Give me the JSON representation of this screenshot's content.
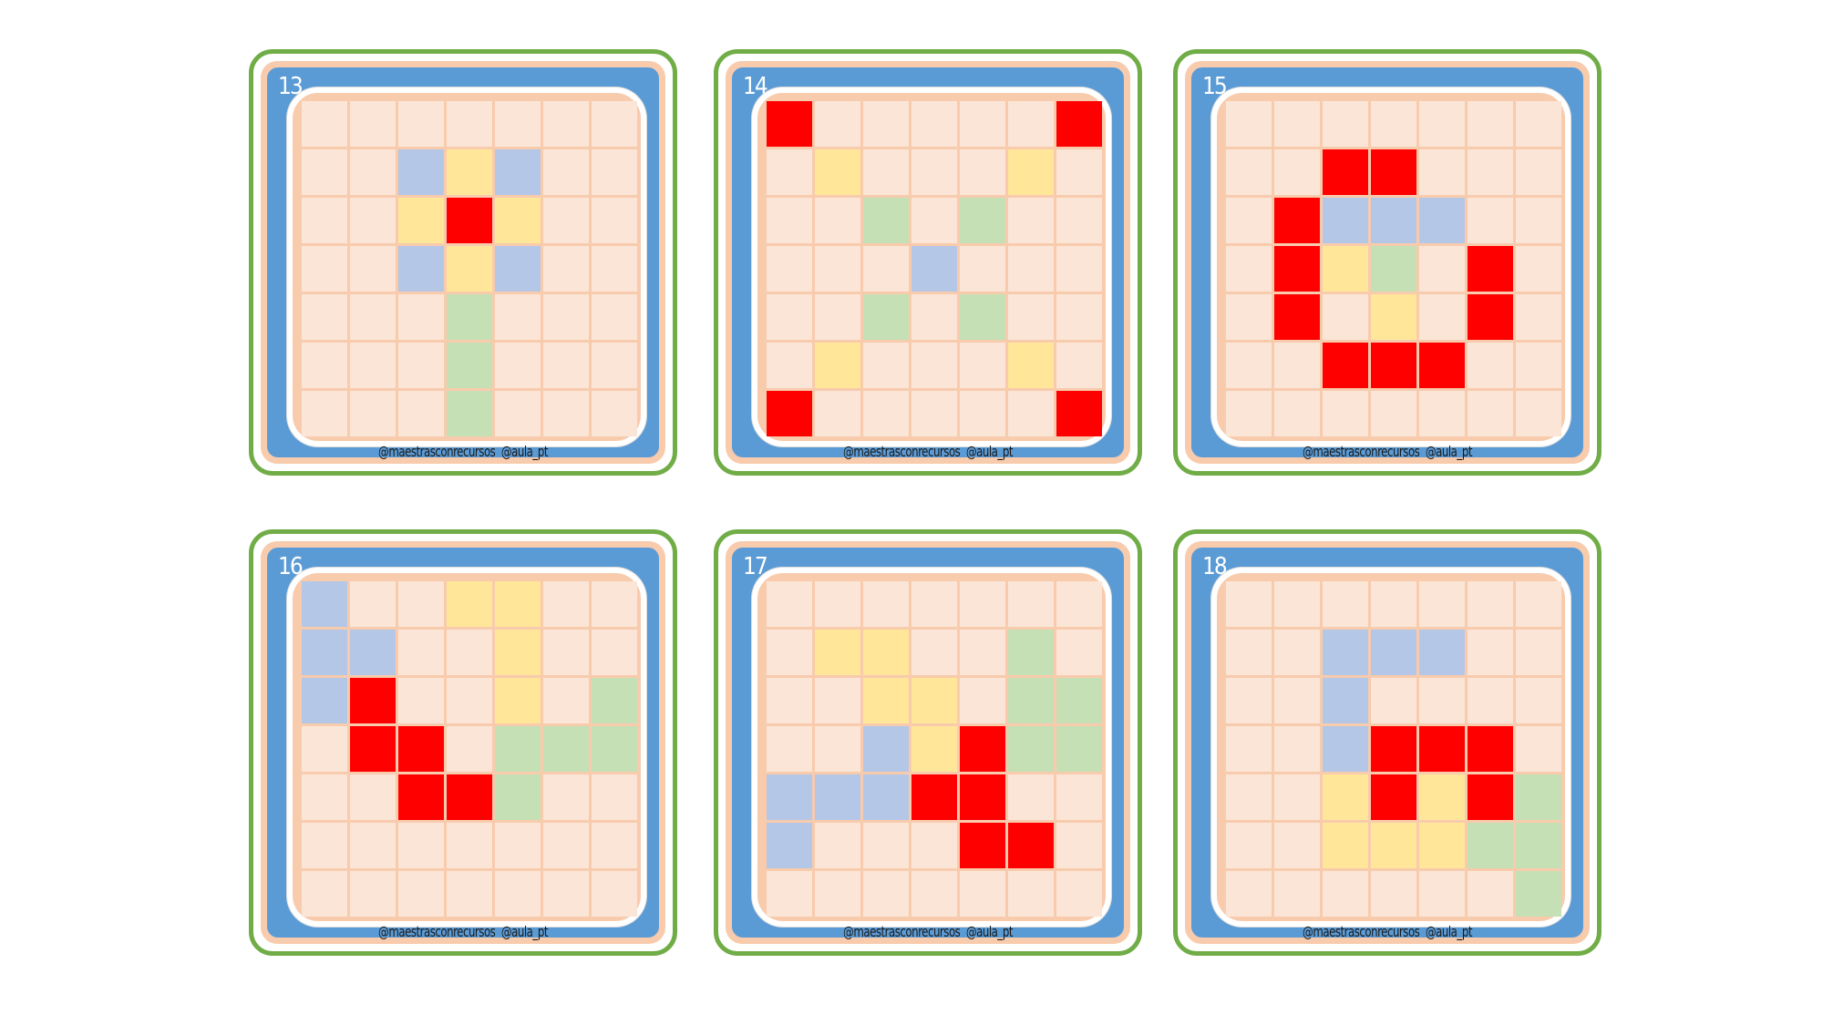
{
  "credit": "@maestrasconrecursos  @aula_pt",
  "colors": {
    "r": "#ff0000",
    "y": "#ffe699",
    "b": "#b4c7e7",
    "g": "#c5e0b4",
    "empty": "#fbe5d6",
    "frame": "#5b9bd5",
    "border": "#70ad47"
  },
  "cards": [
    {
      "number": "13",
      "grid": [
        ".......",
        "..byb..",
        "..yry..",
        "..byb..",
        "...g...",
        "...g...",
        "...g..."
      ]
    },
    {
      "number": "14",
      "grid": [
        "r.....r",
        ".y...y.",
        "..g.g..",
        "...b...",
        "..g.g..",
        ".y...y.",
        "r.....r"
      ]
    },
    {
      "number": "15",
      "grid": [
        ".......",
        "..rr...",
        ".rbbb..",
        ".ryg.r.",
        ".r.y.r.",
        "..rrr..",
        "......."
      ]
    },
    {
      "number": "16",
      "grid": [
        "b..yy..",
        "bb..y..",
        "br..y.g",
        ".rr.ggg",
        "..rrg..",
        ".......",
        "......."
      ]
    },
    {
      "number": "17",
      "grid": [
        ".......",
        ".yy..g.",
        "..yy.gg",
        "..byrgg",
        "bbbrr..",
        "b...rr.",
        "......."
      ]
    },
    {
      "number": "18",
      "grid": [
        ".......",
        "..bbb..",
        "..b....",
        "..brrr.",
        "..yryrg",
        "..yyygg",
        "......g"
      ]
    }
  ]
}
